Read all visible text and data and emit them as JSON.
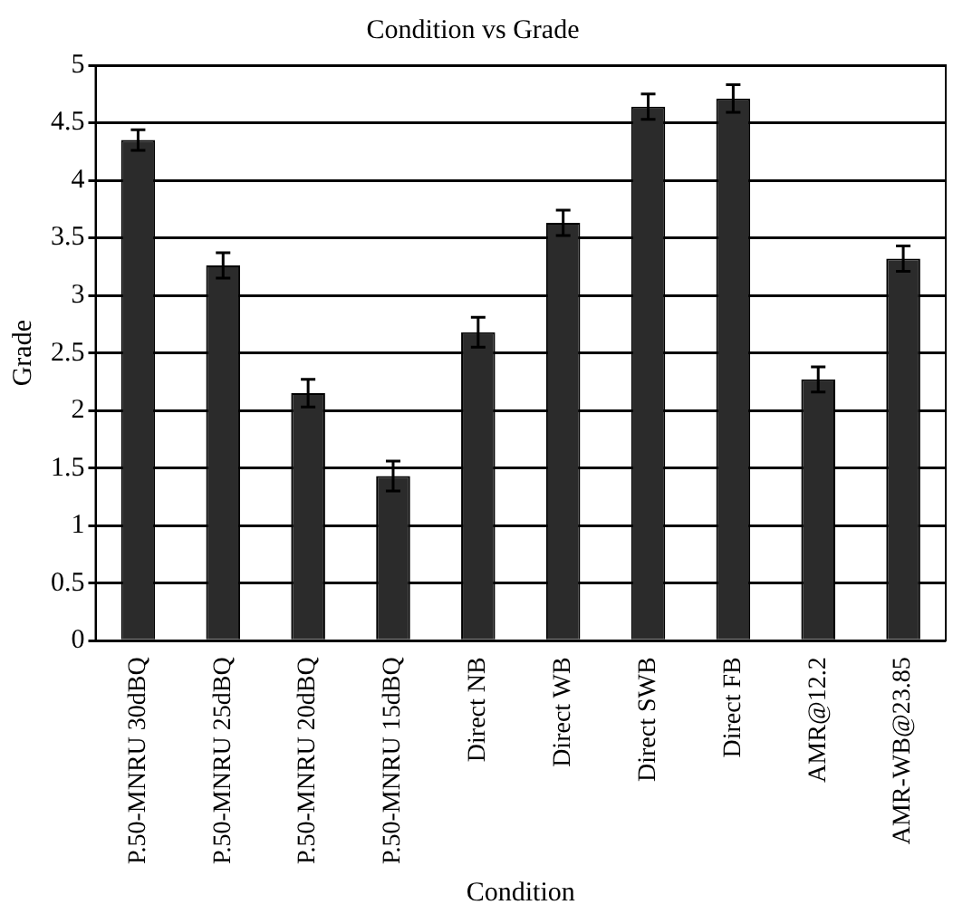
{
  "chart_data": {
    "type": "bar",
    "title": "Condition vs Grade",
    "xlabel": "Condition",
    "ylabel": "Grade",
    "categories": [
      "P.50-MNRU 30dBQ",
      "P.50-MNRU 25dBQ",
      "P.50-MNRU 20dBQ",
      "P.50-MNRU 15dBQ",
      "Direct NB",
      "Direct WB",
      "Direct SWB",
      "Direct FB",
      "AMR@12.2",
      "AMR-WB@23.85"
    ],
    "values": [
      4.35,
      3.26,
      2.15,
      1.43,
      2.68,
      3.63,
      4.64,
      4.71,
      2.27,
      3.32
    ],
    "errors": [
      0.09,
      0.11,
      0.12,
      0.13,
      0.13,
      0.11,
      0.11,
      0.12,
      0.11,
      0.11
    ],
    "color": "#2b2b2b",
    "ylim": [
      0,
      5
    ],
    "yticks": [
      0,
      0.5,
      1,
      1.5,
      2,
      2.5,
      3,
      3.5,
      4,
      4.5,
      5
    ],
    "grid": "y",
    "legend": false
  }
}
